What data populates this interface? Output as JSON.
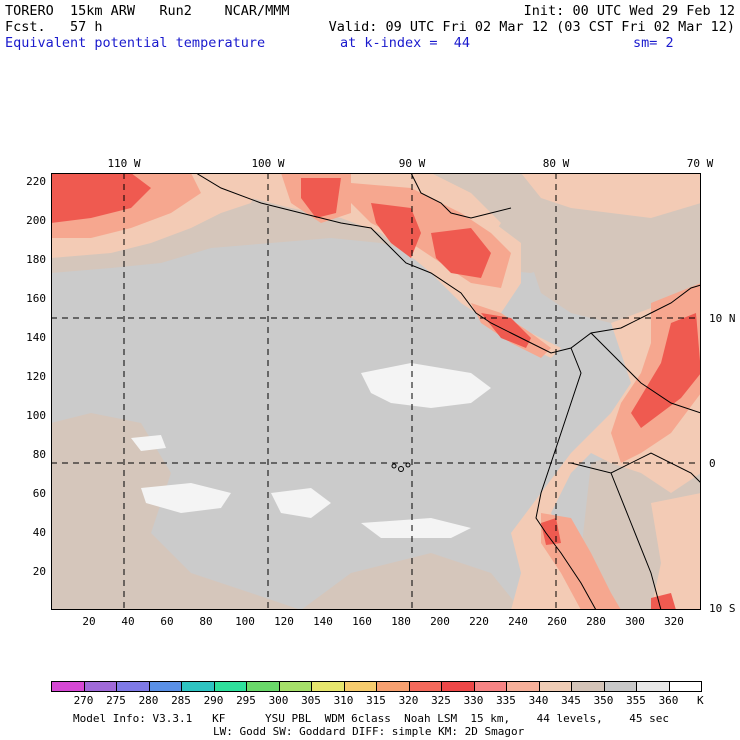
{
  "header": {
    "line1_left": "TORERO  15km ARW   Run2    NCAR/MMM",
    "line1_right": "Init: 00 UTC Wed 29 Feb 12",
    "line2_left": "Fcst.   57 h",
    "line2_right": "Valid: 09 UTC Fri 02 Mar 12 (03 CST Fri 02 Mar 12)",
    "line3_field": "Equivalent potential temperature",
    "line3_level": "at k-index =  44",
    "line3_smooth": "sm= 2"
  },
  "axes": {
    "x_ticks": [
      "20",
      "40",
      "60",
      "80",
      "100",
      "120",
      "140",
      "160",
      "180",
      "200",
      "220",
      "240",
      "260",
      "280",
      "300",
      "320"
    ],
    "y_ticks": [
      "20",
      "40",
      "60",
      "80",
      "100",
      "120",
      "140",
      "160",
      "180",
      "200",
      "220"
    ],
    "lon_labels": [
      "110 W",
      "100 W",
      "90 W",
      "80 W",
      "70 W"
    ],
    "lat_labels": [
      "10 N",
      "0",
      "10 S"
    ]
  },
  "colorbar": {
    "colors": [
      "#d648d4",
      "#a06ad8",
      "#7f7ae6",
      "#5a90e6",
      "#2ec4c2",
      "#2ee09c",
      "#6ad86a",
      "#a6e06a",
      "#e6e66e",
      "#f6cc6e",
      "#f6a070",
      "#f46a5c",
      "#ee4848",
      "#f68484",
      "#f6b09a",
      "#f0cdb6",
      "#d4c4b8",
      "#c8c8c8",
      "#e8e8e8",
      "#ffffff"
    ],
    "labels": [
      "270",
      "275",
      "280",
      "285",
      "290",
      "295",
      "300",
      "305",
      "310",
      "315",
      "320",
      "325",
      "330",
      "335",
      "340",
      "345",
      "350",
      "355",
      "360"
    ],
    "unit": "K"
  },
  "footer": {
    "line1": "Model Info: V3.3.1   KF      YSU PBL  WDM 6class  Noah LSM  15 km,    44 levels,    45 sec",
    "line2": "LW: Godd SW: Goddard DIFF: simple KM: 2D Smagor"
  },
  "map_colors": {
    "ocean_grey": "#cbcbcb",
    "tan": "#d5c6bb",
    "peach": "#f3cbb5",
    "salmon": "#f6a78f",
    "red": "#ef5a50",
    "white": "#f4f4f4"
  }
}
